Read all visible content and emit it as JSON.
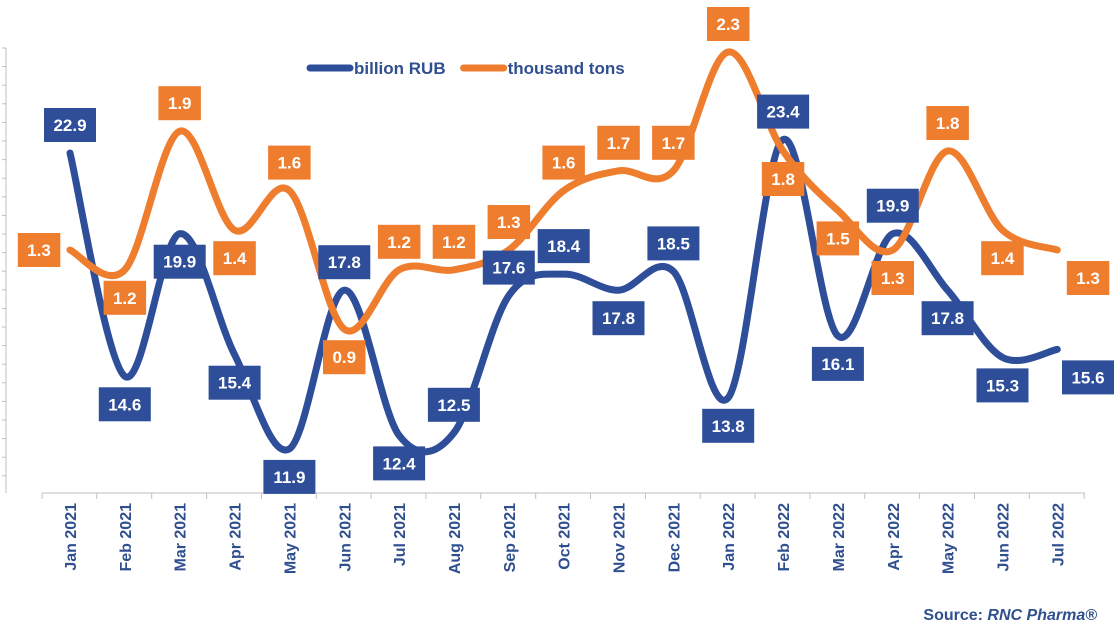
{
  "chart_data": {
    "type": "line",
    "categories": [
      "Jan 2021",
      "Feb 2021",
      "Mar 2021",
      "Apr 2021",
      "May 2021",
      "Jun 2021",
      "Jul 2021",
      "Aug 2021",
      "Sep 2021",
      "Oct 2021",
      "Nov 2021",
      "Dec 2021",
      "Jan 2022",
      "Feb 2022",
      "Mar 2022",
      "Apr 2022",
      "May 2022",
      "Jun 2022",
      "Jul 2022"
    ],
    "series": [
      {
        "name": "billion RUB",
        "color": "#2e4e9a",
        "values": [
          22.9,
          14.6,
          19.9,
          15.4,
          11.9,
          17.8,
          12.4,
          12.5,
          17.6,
          18.4,
          17.8,
          18.5,
          13.8,
          23.4,
          16.1,
          19.9,
          17.8,
          15.3,
          15.6
        ]
      },
      {
        "name": "thousand tons",
        "color": "#ee7d2e",
        "values": [
          1.3,
          1.2,
          1.9,
          1.4,
          1.6,
          0.9,
          1.2,
          1.2,
          1.3,
          1.6,
          1.7,
          1.7,
          2.3,
          1.8,
          1.5,
          1.3,
          1.8,
          1.4,
          1.3
        ]
      }
    ],
    "legend_position": "top-center",
    "grid": false,
    "source": {
      "prefix": "Source: ",
      "brand": "RNC Pharma®"
    }
  }
}
